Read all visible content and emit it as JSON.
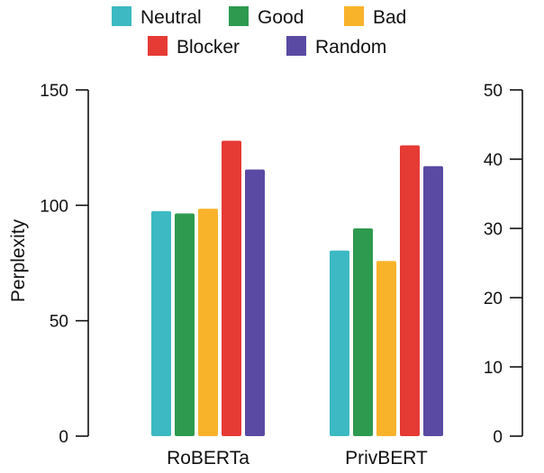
{
  "chart_data": {
    "type": "bar",
    "title": "",
    "xlabel": "",
    "ylabel": "Perplexity",
    "categories": [
      "RoBERTa",
      "PrivBERT"
    ],
    "series": [
      {
        "name": "Neutral",
        "color": "#3cb9c2",
        "values": [
          97.5,
          26.8
        ],
        "axis": [
          "left",
          "right"
        ]
      },
      {
        "name": "Good",
        "color": "#2e9a4f",
        "values": [
          96.5,
          30.0
        ],
        "axis": [
          "left",
          "right"
        ]
      },
      {
        "name": "Bad",
        "color": "#f9b32b",
        "values": [
          98.5,
          25.3
        ],
        "axis": [
          "left",
          "right"
        ]
      },
      {
        "name": "Blocker",
        "color": "#e63a35",
        "values": [
          128.0,
          42.0
        ],
        "axis": [
          "left",
          "right"
        ]
      },
      {
        "name": "Random",
        "color": "#5b4aa3",
        "values": [
          115.5,
          39.0
        ],
        "axis": [
          "left",
          "right"
        ]
      }
    ],
    "left_axis": {
      "ylim": [
        0,
        150
      ],
      "ticks": [
        0,
        50,
        100,
        150
      ]
    },
    "right_axis": {
      "ylim": [
        0,
        50
      ],
      "ticks": [
        0,
        10,
        20,
        30,
        40,
        50
      ]
    },
    "legend": {
      "placement": "top-center",
      "rows": [
        [
          "Neutral",
          "Good",
          "Bad"
        ],
        [
          "Blocker",
          "Random"
        ]
      ]
    },
    "grid": false
  }
}
